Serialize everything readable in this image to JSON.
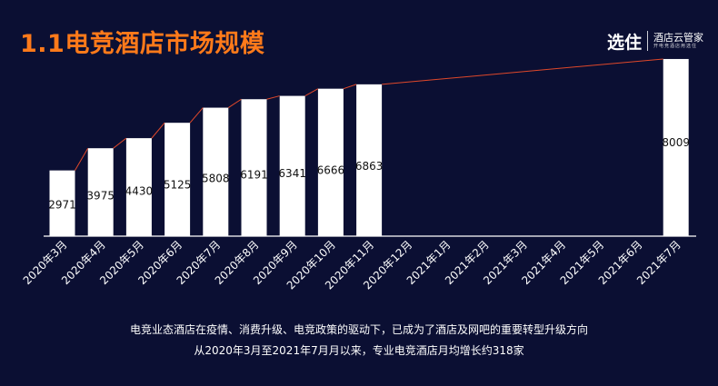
{
  "header": {
    "title": "1.1电竞酒店市场规模"
  },
  "logo": {
    "main": "选住",
    "sub1": "酒店云管家",
    "sub2": "开电竞酒店用选住"
  },
  "captions": {
    "line1": "电竞业态酒店在疫情、消费升级、电竞政策的驱动下，已成为了酒店及网吧的重要转型升级方向",
    "line2": "从2020年3月至2021年7月月以来，专业电竞酒店月均增长约318家"
  },
  "chart_data": {
    "type": "bar",
    "title": "",
    "xlabel": "",
    "ylabel": "",
    "categories": [
      "2020年3月",
      "2020年4月",
      "2020年5月",
      "2020年6月",
      "2020年7月",
      "2020年8月",
      "2020年9月",
      "2020年10月",
      "2020年11月",
      "2020年12月",
      "2021年1月",
      "2021年2月",
      "2021年3月",
      "2021年4月",
      "2021年5月",
      "2021年6月",
      "2021年7月"
    ],
    "values": [
      2971,
      3975,
      4430,
      5125,
      5808,
      6191,
      6341,
      6666,
      6863,
      null,
      null,
      null,
      null,
      null,
      null,
      null,
      8009
    ],
    "ylim": [
      0,
      8500
    ],
    "grid": false,
    "trend_line_color": "#e0482a",
    "bar_color": "#ffffff",
    "label_color": "#111111",
    "axis_color": "#ffffff"
  },
  "colors": {
    "background": "#0b0f33",
    "title": "#ff7a1a"
  }
}
